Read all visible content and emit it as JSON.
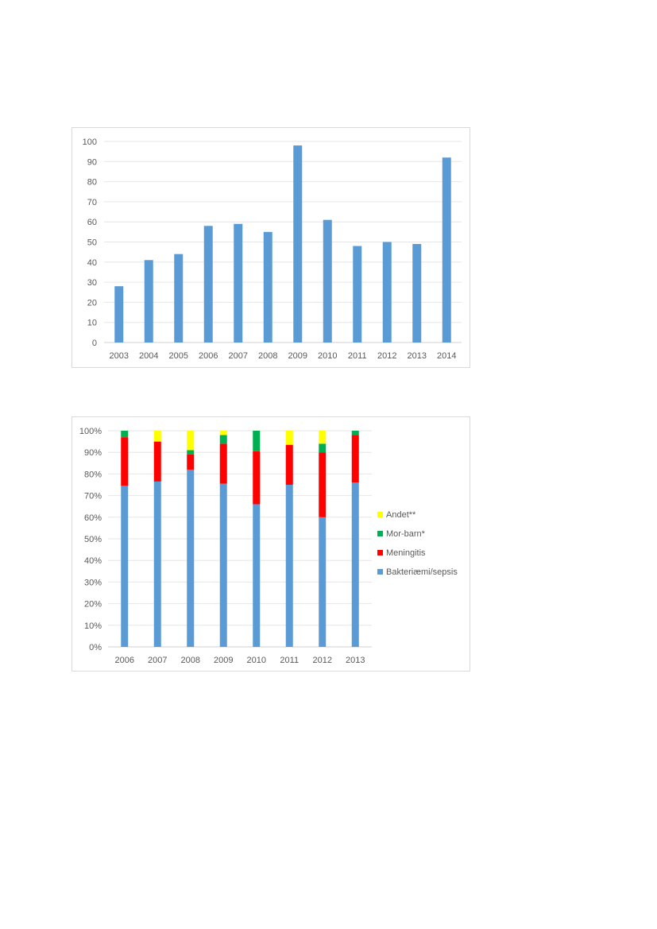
{
  "chart_data": [
    {
      "type": "bar",
      "categories": [
        "2003",
        "2004",
        "2005",
        "2006",
        "2007",
        "2008",
        "2009",
        "2010",
        "2011",
        "2012",
        "2013",
        "2014"
      ],
      "values": [
        28,
        41,
        44,
        58,
        59,
        55,
        98,
        61,
        48,
        50,
        49,
        92
      ],
      "ylim": [
        0,
        100
      ],
      "yticks": [
        "0",
        "10",
        "20",
        "30",
        "40",
        "50",
        "60",
        "70",
        "80",
        "90",
        "100"
      ],
      "grid": true,
      "colors": {
        "bar": "#5b9bd5",
        "grid": "#e6e6e6"
      },
      "title": "",
      "xlabel": "",
      "ylabel": ""
    },
    {
      "type": "bar",
      "stacked": true,
      "percent": true,
      "categories": [
        "2006",
        "2007",
        "2008",
        "2009",
        "2010",
        "2011",
        "2012",
        "2013"
      ],
      "ylim": [
        0,
        100
      ],
      "yticks": [
        "0%",
        "10%",
        "20%",
        "30%",
        "40%",
        "50%",
        "60%",
        "70%",
        "80%",
        "90%",
        "100%"
      ],
      "series": [
        {
          "name": "Bakteriæmi/sepsis",
          "color": "#5b9bd5",
          "values": [
            74.5,
            76.5,
            82,
            75.5,
            66,
            75,
            60,
            76
          ]
        },
        {
          "name": "Meningitis",
          "color": "#ff0000",
          "values": [
            22.5,
            18.5,
            7,
            18.5,
            24.5,
            18.5,
            30,
            22
          ]
        },
        {
          "name": "Mor-barn*",
          "color": "#00b050",
          "values": [
            3,
            0,
            2,
            4,
            9.5,
            0,
            4,
            2
          ]
        },
        {
          "name": "Andet**",
          "color": "#ffff00",
          "values": [
            0,
            5,
            9,
            2,
            0,
            6.5,
            6,
            0
          ]
        }
      ],
      "legend": {
        "position": "right",
        "order": [
          "Andet**",
          "Mor-barn*",
          "Meningitis",
          "Bakteriæmi/sepsis"
        ]
      },
      "grid": true,
      "colors": {
        "grid": "#e6e6e6"
      },
      "title": "",
      "xlabel": "",
      "ylabel": ""
    }
  ]
}
